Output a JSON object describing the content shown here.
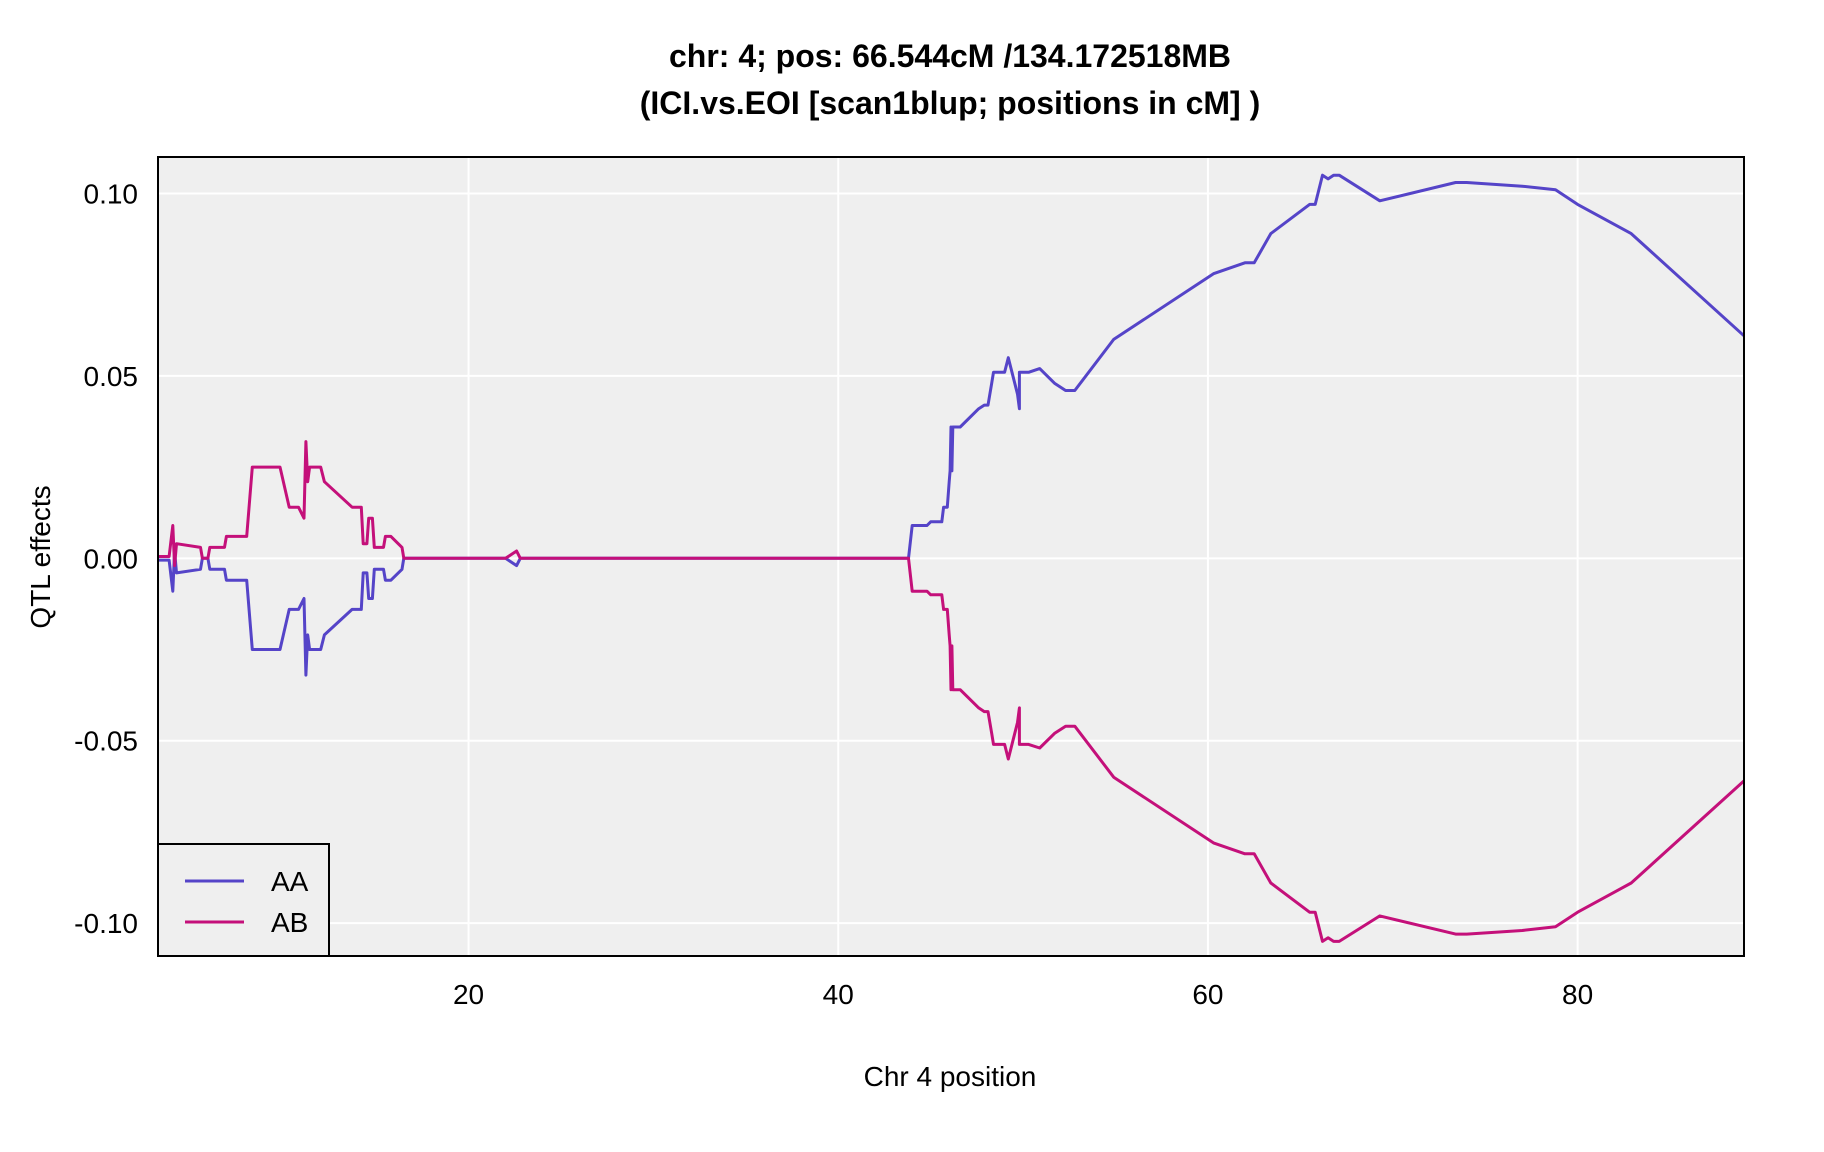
{
  "chart_data": {
    "type": "line",
    "title": "chr: 4; pos: 66.544cM /134.172518MB",
    "subtitle": "(ICI.vs.EOI [scan1blup; positions in cM] )",
    "xlabel": "Chr 4 position",
    "ylabel": "QTL effects",
    "xlim": [
      3.2,
      89
    ],
    "ylim": [
      -0.109,
      0.11
    ],
    "x_ticks": [
      "20",
      "40",
      "60",
      "80"
    ],
    "y_ticks": [
      "0.10",
      "0.05",
      "0.00",
      "-0.05",
      "-0.10"
    ],
    "grid": true,
    "legend_position": "bottom-left",
    "series": [
      {
        "name": "AA",
        "color": "#5544c8",
        "points": [
          [
            3.2,
            -0.0005
          ],
          [
            3.8,
            -0.0005
          ],
          [
            4.0,
            -0.009
          ],
          [
            4.1,
            0.002
          ],
          [
            4.2,
            -0.004
          ],
          [
            5.5,
            -0.003
          ],
          [
            5.6,
            0.0
          ],
          [
            5.9,
            0.0
          ],
          [
            6.0,
            -0.003
          ],
          [
            6.8,
            -0.003
          ],
          [
            6.9,
            -0.006
          ],
          [
            8.0,
            -0.006
          ],
          [
            8.3,
            -0.025
          ],
          [
            9.8,
            -0.025
          ],
          [
            10.3,
            -0.014
          ],
          [
            10.8,
            -0.014
          ],
          [
            11.1,
            -0.011
          ],
          [
            11.2,
            -0.032
          ],
          [
            11.3,
            -0.021
          ],
          [
            11.4,
            -0.025
          ],
          [
            12.0,
            -0.025
          ],
          [
            12.2,
            -0.021
          ],
          [
            13.7,
            -0.014
          ],
          [
            14.2,
            -0.014
          ],
          [
            14.3,
            -0.004
          ],
          [
            14.5,
            -0.004
          ],
          [
            14.6,
            -0.011
          ],
          [
            14.8,
            -0.011
          ],
          [
            14.9,
            -0.003
          ],
          [
            15.4,
            -0.003
          ],
          [
            15.5,
            -0.006
          ],
          [
            15.8,
            -0.006
          ],
          [
            16.4,
            -0.003
          ],
          [
            16.5,
            0.0
          ],
          [
            22.0,
            0.0
          ],
          [
            22.6,
            -0.002
          ],
          [
            22.8,
            0.0
          ],
          [
            43.8,
            0.0
          ],
          [
            44.0,
            0.009
          ],
          [
            44.5,
            0.009
          ],
          [
            44.8,
            0.009
          ],
          [
            45.0,
            0.01
          ],
          [
            45.6,
            0.01
          ],
          [
            45.7,
            0.014
          ],
          [
            45.9,
            0.014
          ],
          [
            46.0,
            0.021
          ],
          [
            46.05,
            0.024
          ],
          [
            46.1,
            0.036
          ],
          [
            46.15,
            0.024
          ],
          [
            46.2,
            0.036
          ],
          [
            46.6,
            0.036
          ],
          [
            47.6,
            0.041
          ],
          [
            47.9,
            0.042
          ],
          [
            48.1,
            0.042
          ],
          [
            48.3,
            0.048
          ],
          [
            48.4,
            0.051
          ],
          [
            49.0,
            0.051
          ],
          [
            49.2,
            0.055
          ],
          [
            49.7,
            0.045
          ],
          [
            49.8,
            0.041
          ],
          [
            49.8,
            0.051
          ],
          [
            50.3,
            0.051
          ],
          [
            50.9,
            0.052
          ],
          [
            51.7,
            0.048
          ],
          [
            52.3,
            0.046
          ],
          [
            52.8,
            0.046
          ],
          [
            54.9,
            0.06
          ],
          [
            60.3,
            0.078
          ],
          [
            62.0,
            0.081
          ],
          [
            62.5,
            0.081
          ],
          [
            63.4,
            0.089
          ],
          [
            65.5,
            0.097
          ],
          [
            65.8,
            0.097
          ],
          [
            66.2,
            0.105
          ],
          [
            66.5,
            0.104
          ],
          [
            66.8,
            0.105
          ],
          [
            67.1,
            0.105
          ],
          [
            69.3,
            0.098
          ],
          [
            73.4,
            0.103
          ],
          [
            74.0,
            0.103
          ],
          [
            77.0,
            0.102
          ],
          [
            78.8,
            0.101
          ],
          [
            80.0,
            0.097
          ],
          [
            82.9,
            0.089
          ],
          [
            89.0,
            0.061
          ]
        ]
      },
      {
        "name": "AB",
        "color": "#c4107a",
        "points": [
          [
            3.2,
            0.0005
          ],
          [
            3.8,
            0.0005
          ],
          [
            4.0,
            0.009
          ],
          [
            4.1,
            -0.002
          ],
          [
            4.2,
            0.004
          ],
          [
            5.5,
            0.003
          ],
          [
            5.6,
            0.0
          ],
          [
            5.9,
            0.0
          ],
          [
            6.0,
            0.003
          ],
          [
            6.8,
            0.003
          ],
          [
            6.9,
            0.006
          ],
          [
            8.0,
            0.006
          ],
          [
            8.3,
            0.025
          ],
          [
            9.8,
            0.025
          ],
          [
            10.3,
            0.014
          ],
          [
            10.8,
            0.014
          ],
          [
            11.1,
            0.011
          ],
          [
            11.2,
            0.032
          ],
          [
            11.3,
            0.021
          ],
          [
            11.4,
            0.025
          ],
          [
            12.0,
            0.025
          ],
          [
            12.2,
            0.021
          ],
          [
            13.7,
            0.014
          ],
          [
            14.2,
            0.014
          ],
          [
            14.3,
            0.004
          ],
          [
            14.5,
            0.004
          ],
          [
            14.6,
            0.011
          ],
          [
            14.8,
            0.011
          ],
          [
            14.9,
            0.003
          ],
          [
            15.4,
            0.003
          ],
          [
            15.5,
            0.006
          ],
          [
            15.8,
            0.006
          ],
          [
            16.4,
            0.003
          ],
          [
            16.5,
            0.0
          ],
          [
            22.0,
            0.0
          ],
          [
            22.6,
            0.002
          ],
          [
            22.8,
            0.0
          ],
          [
            43.8,
            0.0
          ],
          [
            44.0,
            -0.009
          ],
          [
            44.5,
            -0.009
          ],
          [
            44.8,
            -0.009
          ],
          [
            45.0,
            -0.01
          ],
          [
            45.6,
            -0.01
          ],
          [
            45.7,
            -0.014
          ],
          [
            45.9,
            -0.014
          ],
          [
            46.0,
            -0.021
          ],
          [
            46.05,
            -0.024
          ],
          [
            46.1,
            -0.036
          ],
          [
            46.15,
            -0.024
          ],
          [
            46.2,
            -0.036
          ],
          [
            46.6,
            -0.036
          ],
          [
            47.6,
            -0.041
          ],
          [
            47.9,
            -0.042
          ],
          [
            48.1,
            -0.042
          ],
          [
            48.3,
            -0.048
          ],
          [
            48.4,
            -0.051
          ],
          [
            49.0,
            -0.051
          ],
          [
            49.2,
            -0.055
          ],
          [
            49.7,
            -0.045
          ],
          [
            49.8,
            -0.041
          ],
          [
            49.8,
            -0.051
          ],
          [
            50.3,
            -0.051
          ],
          [
            50.9,
            -0.052
          ],
          [
            51.7,
            -0.048
          ],
          [
            52.3,
            -0.046
          ],
          [
            52.8,
            -0.046
          ],
          [
            54.9,
            -0.06
          ],
          [
            60.3,
            -0.078
          ],
          [
            62.0,
            -0.081
          ],
          [
            62.5,
            -0.081
          ],
          [
            63.4,
            -0.089
          ],
          [
            65.5,
            -0.097
          ],
          [
            65.8,
            -0.097
          ],
          [
            66.2,
            -0.105
          ],
          [
            66.5,
            -0.104
          ],
          [
            66.8,
            -0.105
          ],
          [
            67.1,
            -0.105
          ],
          [
            69.3,
            -0.098
          ],
          [
            73.4,
            -0.103
          ],
          [
            74.0,
            -0.103
          ],
          [
            77.0,
            -0.102
          ],
          [
            78.8,
            -0.101
          ],
          [
            80.0,
            -0.097
          ],
          [
            82.9,
            -0.089
          ],
          [
            89.0,
            -0.061
          ]
        ]
      }
    ]
  }
}
